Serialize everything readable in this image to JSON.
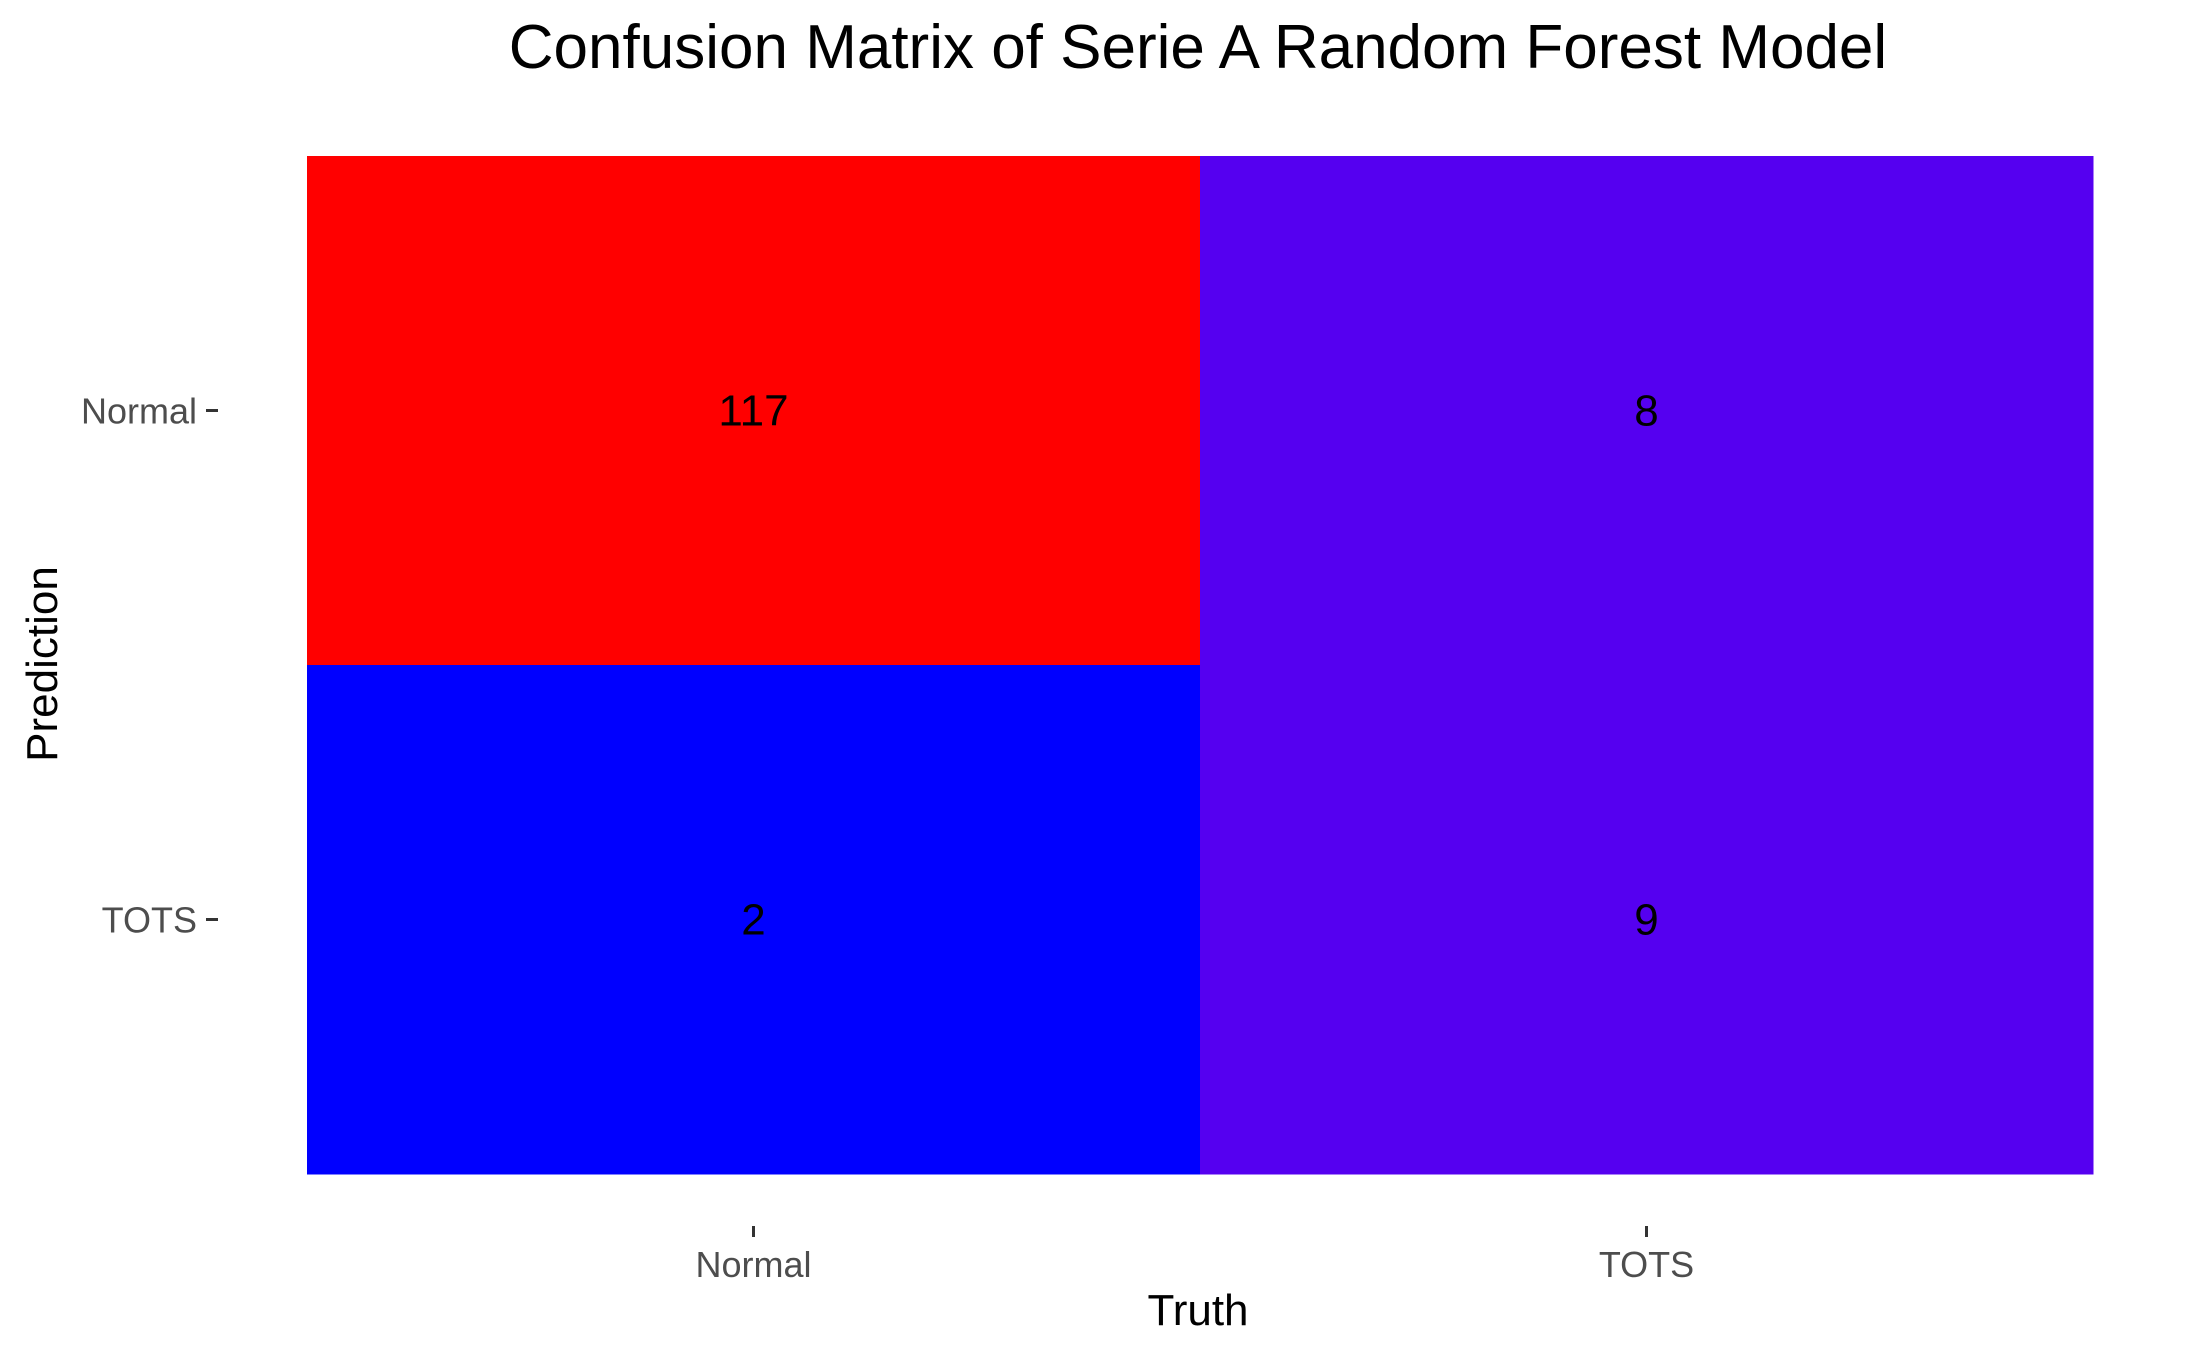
{
  "chart_data": {
    "type": "heatmap",
    "title": "Confusion Matrix of Serie A Random Forest Model",
    "xlabel": "Truth",
    "ylabel": "Prediction",
    "x_categories": [
      "Normal",
      "TOTS"
    ],
    "y_categories": [
      "Normal",
      "TOTS"
    ],
    "cells": [
      {
        "truth": "Normal",
        "prediction": "Normal",
        "value": 117,
        "color": "#ff0000"
      },
      {
        "truth": "TOTS",
        "prediction": "Normal",
        "value": 8,
        "color": "#5500f0"
      },
      {
        "truth": "Normal",
        "prediction": "TOTS",
        "value": 2,
        "color": "#0000ff"
      },
      {
        "truth": "TOTS",
        "prediction": "TOTS",
        "value": 9,
        "color": "#5500f0"
      }
    ],
    "grid": false,
    "legend": "none"
  }
}
